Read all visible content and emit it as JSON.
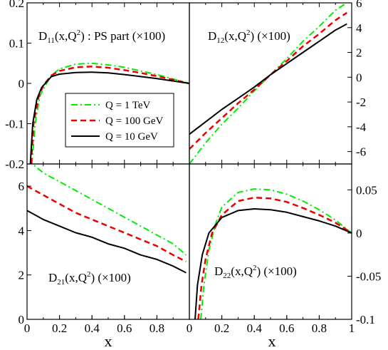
{
  "colors": {
    "q1tev": "#00ee00",
    "q100gev": "#ee0000",
    "q10gev": "#000000"
  },
  "chart_data": [
    {
      "type": "line",
      "panel": "top-left",
      "title": {
        "main": "D",
        "sub": "11",
        "rest": "(x,Q",
        "sup": "2",
        "tail": ") : PS part (×100)"
      },
      "ylim": [
        -0.2,
        0.2
      ],
      "yticks": [
        "0.2",
        "0.1",
        "0",
        "-0.1",
        "-0.2"
      ],
      "yticks_side": "left",
      "xticks": [],
      "legend": {
        "placement": "center",
        "entries": [
          "Q = 1 TeV",
          "Q = 100 GeV",
          "Q = 10 GeV"
        ]
      },
      "series": [
        {
          "name": "Q = 1 TeV",
          "x": [
            0.03,
            0.05,
            0.08,
            0.12,
            0.15,
            0.2,
            0.3,
            0.4,
            0.5,
            0.6,
            0.7,
            0.8,
            0.9,
            1.0
          ],
          "y": [
            -0.2,
            -0.1,
            -0.03,
            0.0,
            0.02,
            0.036,
            0.048,
            0.05,
            0.046,
            0.04,
            0.031,
            0.022,
            0.011,
            0.0
          ]
        },
        {
          "name": "Q = 100 GeV",
          "x": [
            0.025,
            0.04,
            0.07,
            0.1,
            0.15,
            0.2,
            0.3,
            0.4,
            0.5,
            0.6,
            0.7,
            0.8,
            0.9,
            1.0
          ],
          "y": [
            -0.2,
            -0.1,
            -0.035,
            -0.005,
            0.02,
            0.031,
            0.04,
            0.042,
            0.039,
            0.033,
            0.026,
            0.018,
            0.009,
            0.0
          ]
        },
        {
          "name": "Q = 10 GeV",
          "x": [
            0.02,
            0.035,
            0.06,
            0.09,
            0.15,
            0.2,
            0.3,
            0.4,
            0.5,
            0.6,
            0.7,
            0.8,
            0.9,
            1.0
          ],
          "y": [
            -0.2,
            -0.1,
            -0.04,
            -0.01,
            0.017,
            0.023,
            0.027,
            0.028,
            0.026,
            0.022,
            0.017,
            0.012,
            0.006,
            0.0
          ]
        }
      ]
    },
    {
      "type": "line",
      "panel": "top-right",
      "title": {
        "main": "D",
        "sub": "12",
        "rest": "(x,Q",
        "sup": "2",
        "tail": ") (×100)"
      },
      "ylim": [
        -7,
        6
      ],
      "yticks": [
        "6",
        "4",
        "2",
        "0",
        "-2",
        "-4",
        "-6"
      ],
      "yticks_side": "right",
      "xticks": [],
      "series": [
        {
          "name": "Q = 1 TeV",
          "x": [
            0.0,
            0.1,
            0.2,
            0.3,
            0.4,
            0.5,
            0.6,
            0.7,
            0.8,
            0.9,
            0.97
          ],
          "y": [
            -7.0,
            -5.3,
            -3.8,
            -2.5,
            -1.1,
            0.2,
            1.5,
            2.9,
            4.1,
            5.4,
            6.0
          ]
        },
        {
          "name": "Q = 100 GeV",
          "x": [
            0.0,
            0.1,
            0.2,
            0.3,
            0.4,
            0.5,
            0.6,
            0.7,
            0.8,
            0.9,
            0.97
          ],
          "y": [
            -5.8,
            -4.5,
            -3.3,
            -2.1,
            -1.0,
            0.2,
            1.3,
            2.5,
            3.5,
            4.6,
            5.2
          ]
        },
        {
          "name": "Q = 10 GeV",
          "x": [
            0.0,
            0.1,
            0.2,
            0.3,
            0.4,
            0.5,
            0.6,
            0.7,
            0.8,
            0.9,
            0.97
          ],
          "y": [
            -4.6,
            -3.6,
            -2.6,
            -1.7,
            -0.8,
            0.2,
            1.1,
            2.0,
            2.9,
            3.8,
            4.3
          ]
        }
      ]
    },
    {
      "type": "line",
      "panel": "bottom-left",
      "title": {
        "main": "D",
        "sub": "21",
        "rest": "(x,Q",
        "sup": "2",
        "tail": ") (×100)"
      },
      "ylim": [
        0,
        7
      ],
      "yticks": [
        "6",
        "4",
        "2",
        "0"
      ],
      "yticks_side": "left",
      "xlabel": "x",
      "xticks": [
        "0",
        "0.2",
        "0.4",
        "0.6",
        "0.8"
      ],
      "series": [
        {
          "name": "Q = 1 TeV",
          "x": [
            0.0,
            0.1,
            0.2,
            0.3,
            0.4,
            0.5,
            0.6,
            0.7,
            0.8,
            0.9,
            0.98
          ],
          "y": [
            7.2,
            6.6,
            6.2,
            5.8,
            5.4,
            5.0,
            4.6,
            4.2,
            3.8,
            3.4,
            2.9
          ]
        },
        {
          "name": "Q = 100 GeV",
          "x": [
            0.0,
            0.1,
            0.2,
            0.3,
            0.4,
            0.5,
            0.6,
            0.7,
            0.8,
            0.9,
            0.98
          ],
          "y": [
            6.0,
            5.6,
            5.2,
            4.8,
            4.5,
            4.2,
            3.9,
            3.6,
            3.3,
            2.9,
            2.6
          ]
        },
        {
          "name": "Q = 10 GeV",
          "x": [
            0.0,
            0.1,
            0.2,
            0.3,
            0.4,
            0.5,
            0.6,
            0.7,
            0.8,
            0.9,
            0.98
          ],
          "y": [
            4.9,
            4.5,
            4.2,
            3.9,
            3.7,
            3.4,
            3.2,
            2.9,
            2.7,
            2.4,
            2.1
          ]
        }
      ]
    },
    {
      "type": "line",
      "panel": "bottom-right",
      "title": {
        "main": "D",
        "sub": "22",
        "rest": "(x,Q",
        "sup": "2",
        "tail": ") (×100)"
      },
      "ylim": [
        -0.1,
        0.08
      ],
      "yticks": [
        "0.05",
        "0",
        "-0.05",
        "-0.1"
      ],
      "yticks_side": "right",
      "xlabel": "x",
      "xticks": [
        "0",
        "0.2",
        "0.4",
        "0.6",
        "0.8",
        "1"
      ],
      "series": [
        {
          "name": "Q = 1 TeV",
          "x": [
            0.07,
            0.09,
            0.12,
            0.16,
            0.2,
            0.3,
            0.4,
            0.5,
            0.6,
            0.7,
            0.8,
            0.9,
            1.0
          ],
          "y": [
            -0.1,
            -0.06,
            -0.02,
            0.01,
            0.03,
            0.047,
            0.051,
            0.05,
            0.045,
            0.037,
            0.027,
            0.015,
            0.0
          ]
        },
        {
          "name": "Q = 100 GeV",
          "x": [
            0.055,
            0.075,
            0.1,
            0.14,
            0.2,
            0.3,
            0.4,
            0.5,
            0.6,
            0.7,
            0.8,
            0.9,
            1.0
          ],
          "y": [
            -0.1,
            -0.06,
            -0.03,
            0.0,
            0.021,
            0.037,
            0.041,
            0.04,
            0.036,
            0.029,
            0.021,
            0.012,
            0.0
          ]
        },
        {
          "name": "Q = 10 GeV",
          "x": [
            0.035,
            0.05,
            0.08,
            0.12,
            0.2,
            0.3,
            0.4,
            0.5,
            0.6,
            0.7,
            0.8,
            0.9,
            1.0
          ],
          "y": [
            -0.1,
            -0.06,
            -0.025,
            0.0,
            0.018,
            0.026,
            0.028,
            0.027,
            0.024,
            0.019,
            0.014,
            0.008,
            0.0
          ]
        }
      ]
    }
  ]
}
